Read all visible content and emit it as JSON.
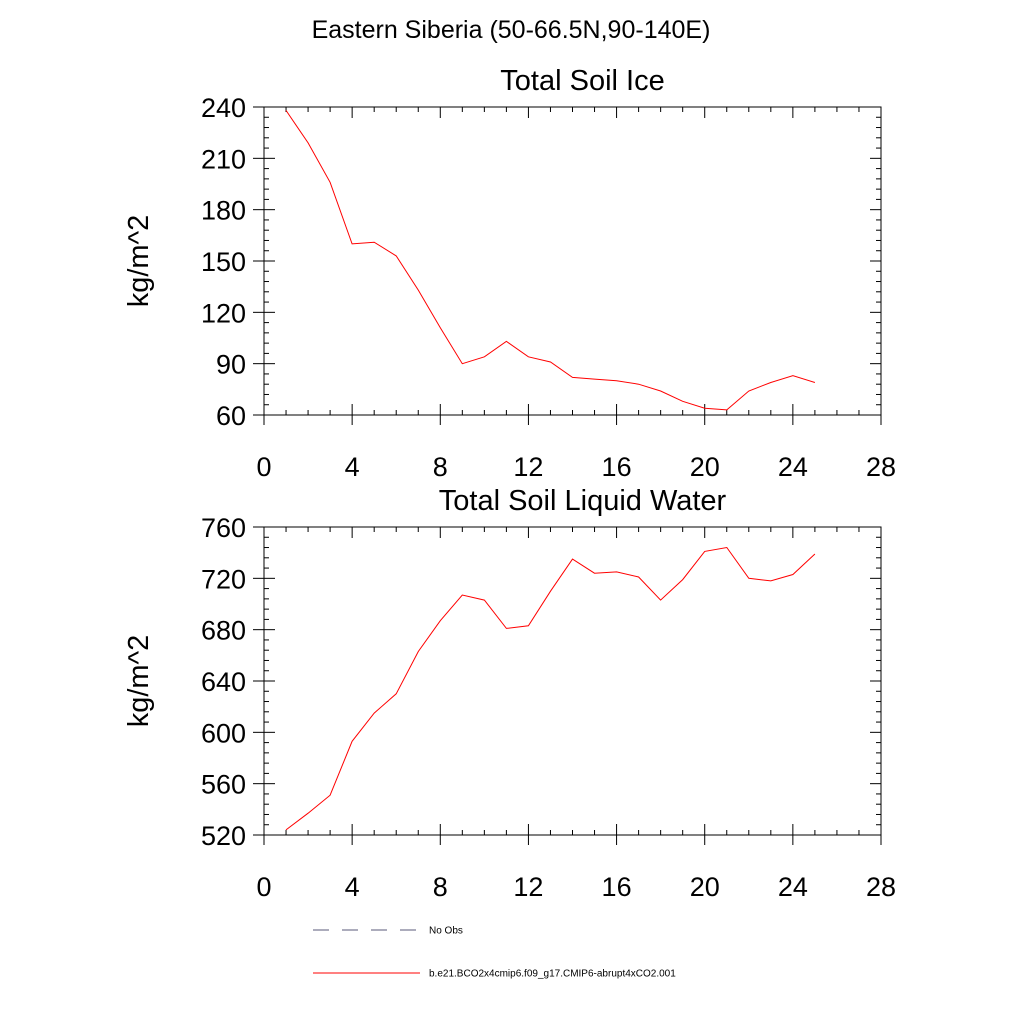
{
  "figure_title": "Eastern Siberia (50-66.5N,90-140E)",
  "chart_data": [
    {
      "type": "line",
      "title": "Total Soil Ice",
      "xlabel": "",
      "ylabel": "kg/m^2",
      "xlim": [
        0,
        28
      ],
      "ylim": [
        60,
        240
      ],
      "xticks": [
        0,
        4,
        8,
        12,
        16,
        20,
        24,
        28
      ],
      "yticks": [
        60,
        90,
        120,
        150,
        180,
        210,
        240
      ],
      "x": [
        1,
        2,
        3,
        4,
        5,
        6,
        7,
        8,
        9,
        10,
        11,
        12,
        13,
        14,
        15,
        16,
        17,
        18,
        19,
        20,
        21,
        22,
        23,
        24,
        25
      ],
      "series": [
        {
          "name": "b.e21.BCO2x4cmip6.f09_g17.CMIP6-abrupt4xCO2.001",
          "color": "#ff0000",
          "values": [
            238,
            219,
            196,
            160,
            161,
            153,
            133,
            111,
            90,
            94,
            103,
            94,
            91,
            82,
            81,
            80,
            78,
            74,
            68,
            64,
            63,
            74,
            79,
            83,
            79
          ]
        }
      ],
      "grid": false
    },
    {
      "type": "line",
      "title": "Total Soil Liquid Water",
      "xlabel": "",
      "ylabel": "kg/m^2",
      "xlim": [
        0,
        28
      ],
      "ylim": [
        520,
        760
      ],
      "xticks": [
        0,
        4,
        8,
        12,
        16,
        20,
        24,
        28
      ],
      "yticks": [
        520,
        560,
        600,
        640,
        680,
        720,
        760
      ],
      "x": [
        1,
        2,
        3,
        4,
        5,
        6,
        7,
        8,
        9,
        10,
        11,
        12,
        13,
        14,
        15,
        16,
        17,
        18,
        19,
        20,
        21,
        22,
        23,
        24,
        25
      ],
      "series": [
        {
          "name": "b.e21.BCO2x4cmip6.f09_g17.CMIP6-abrupt4xCO2.001",
          "color": "#ff0000",
          "values": [
            524,
            537,
            551,
            593,
            615,
            630,
            663,
            687,
            707,
            703,
            681,
            683,
            710,
            735,
            724,
            725,
            721,
            703,
            719,
            741,
            744,
            720,
            718,
            723,
            739
          ]
        }
      ],
      "grid": false
    }
  ],
  "legend": {
    "placement": "bottom",
    "entries": [
      {
        "label": "No Obs",
        "style": "dashed",
        "color": "#5a5a7a"
      },
      {
        "label": "b.e21.BCO2x4cmip6.f09_g17.CMIP6-abrupt4xCO2.001",
        "style": "solid",
        "color": "#ff0000"
      }
    ]
  }
}
